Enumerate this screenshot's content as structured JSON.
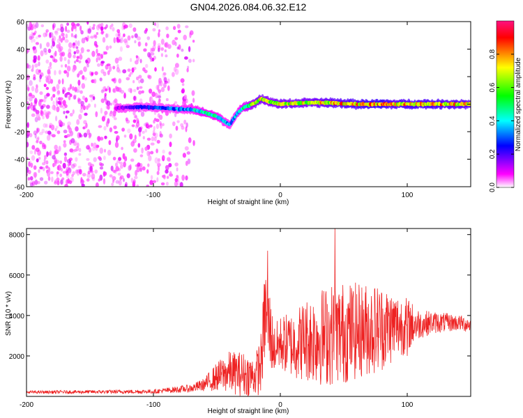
{
  "title": "GN04.2026.084.06.32.E12",
  "chart_data": [
    {
      "type": "heatmap",
      "name": "spectrogram",
      "xlabel": "Height of straight line (km)",
      "ylabel": "Frequency (Hz)",
      "xlim": [
        -200,
        150
      ],
      "ylim": [
        -60,
        60
      ],
      "xticks": [
        -200,
        -100,
        0,
        100
      ],
      "yticks": [
        -60,
        -40,
        -20,
        0,
        20,
        40,
        60
      ],
      "colorbar": {
        "label": "Normalized spectral amplitude",
        "range": [
          0,
          1
        ],
        "ticks": [
          0.0,
          0.2,
          0.4,
          0.6,
          0.8
        ],
        "colormap": [
          "#ffffff",
          "#ff00ff",
          "#0000ff",
          "#00ffff",
          "#00ff00",
          "#ffff00",
          "#ff0000"
        ]
      },
      "ridge": {
        "x": [
          -130,
          -110,
          -90,
          -70,
          -60,
          -50,
          -45,
          -40,
          -35,
          -30,
          -20,
          -15,
          -10,
          0,
          20,
          40,
          60,
          80,
          90,
          100,
          120,
          150
        ],
        "frequency": [
          -3,
          -2,
          -3,
          -4,
          -6,
          -9,
          -12,
          -15,
          -8,
          -3,
          1,
          4,
          2,
          0,
          1,
          1,
          0,
          0,
          0,
          0,
          0,
          0
        ],
        "amplitude": [
          0.2,
          0.35,
          0.4,
          0.5,
          0.6,
          0.55,
          0.5,
          0.45,
          0.5,
          0.6,
          0.8,
          0.85,
          0.8,
          0.85,
          0.85,
          0.9,
          0.95,
          1.0,
          0.9,
          0.95,
          0.95,
          0.9
        ]
      },
      "noise_region": {
        "x_range": [
          -200,
          -68
        ],
        "amplitude": [
          0.0,
          0.15
        ]
      }
    },
    {
      "type": "line",
      "name": "snr",
      "xlabel": "Height of straight line (km)",
      "ylabel": "SNR (10 * v/v)",
      "xlim": [
        -200,
        150
      ],
      "ylim": [
        0,
        8300
      ],
      "xticks": [
        -200,
        -100,
        0,
        100
      ],
      "yticks": [
        2000,
        4000,
        6000,
        8000
      ],
      "color": "#ee2222",
      "envelope": {
        "x": [
          -200,
          -100,
          -70,
          -60,
          -50,
          -40,
          -30,
          -20,
          -15,
          -12,
          -8,
          -5,
          0,
          10,
          20,
          30,
          40,
          50,
          60,
          70,
          80,
          90,
          100,
          110,
          120,
          130,
          140,
          150
        ],
        "base": [
          200,
          230,
          380,
          550,
          900,
          1100,
          1000,
          900,
          1500,
          4000,
          3000,
          2200,
          2500,
          2400,
          2600,
          2700,
          2800,
          2900,
          3000,
          3100,
          3200,
          3300,
          3400,
          3500,
          3600,
          3600,
          3600,
          3500
        ],
        "spread": [
          90,
          130,
          250,
          400,
          900,
          1300,
          1400,
          1200,
          2000,
          3000,
          2500,
          1500,
          1700,
          2100,
          2600,
          3000,
          3200,
          3200,
          3000,
          2900,
          2700,
          2200,
          1700,
          900,
          700,
          600,
          500,
          500
        ],
        "peaks": [
          {
            "x": -10,
            "y": 7200
          },
          {
            "x": 43,
            "y": 8300
          },
          {
            "x": 100,
            "y": 2000
          }
        ]
      }
    }
  ]
}
